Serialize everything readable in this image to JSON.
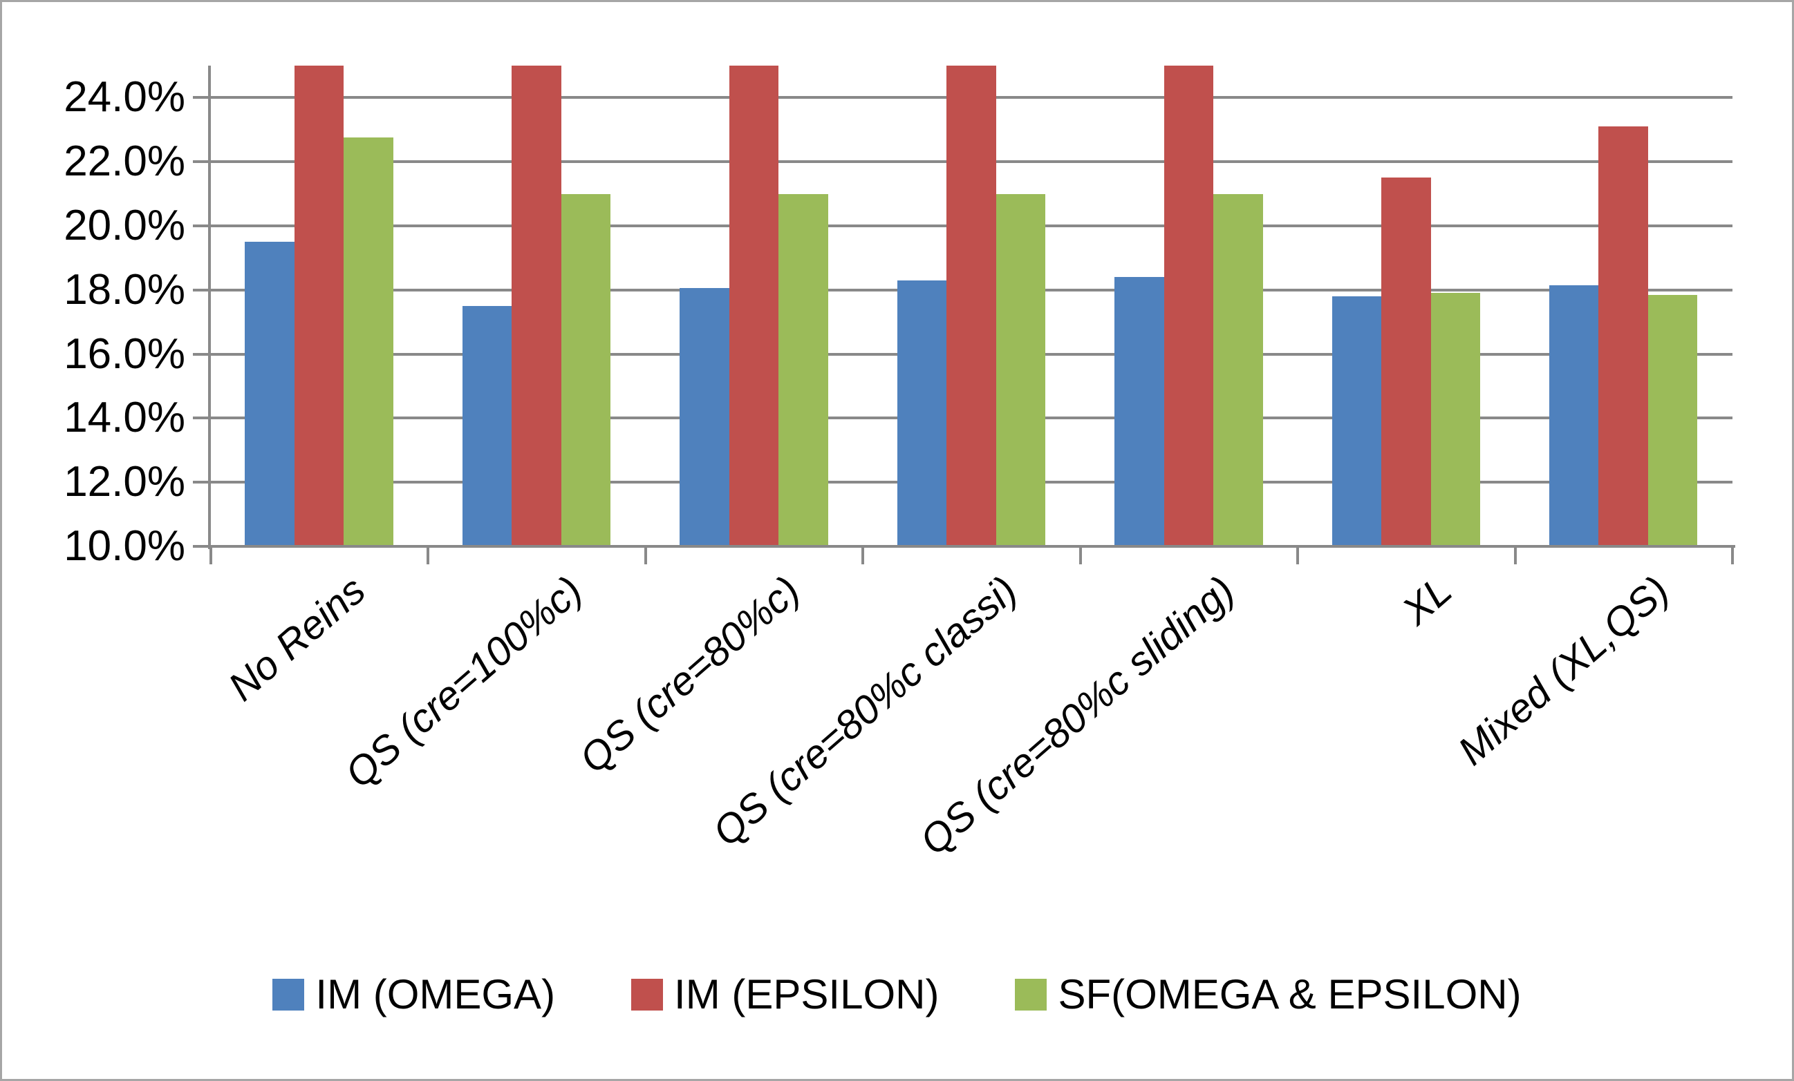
{
  "chart_data": {
    "type": "bar",
    "title": "",
    "xlabel": "",
    "ylabel": "",
    "categories": [
      "No Reins",
      "QS (cre=100%c)",
      "QS (cre=80%c)",
      "QS (cre=80%c classi)",
      "QS (cre=80%c sliding)",
      "XL",
      "Mixed (XL,QS)"
    ],
    "series": [
      {
        "name": "IM (OMEGA)",
        "color": "#4F81BD",
        "values": [
          19.5,
          17.5,
          18.05,
          18.3,
          18.4,
          17.8,
          18.15
        ]
      },
      {
        "name": "IM (EPSILON)",
        "color": "#C0504D",
        "values": [
          25.0,
          25.0,
          25.0,
          25.0,
          25.0,
          21.5,
          23.1
        ]
      },
      {
        "name": "SF(OMEGA & EPSILON)",
        "color": "#9BBB59",
        "values": [
          22.75,
          21.0,
          21.0,
          21.0,
          21.0,
          17.9,
          17.85
        ]
      }
    ],
    "ylim": [
      10,
      25
    ],
    "yticks": [
      {
        "value": 10,
        "label": "10.0%"
      },
      {
        "value": 12,
        "label": "12.0%"
      },
      {
        "value": 14,
        "label": "14.0%"
      },
      {
        "value": 16,
        "label": "16.0%"
      },
      {
        "value": 18,
        "label": "18.0%"
      },
      {
        "value": 20,
        "label": "20.0%"
      },
      {
        "value": 22,
        "label": "22.0%"
      },
      {
        "value": 24,
        "label": "24.0%"
      }
    ],
    "grid": true,
    "legend_position": "bottom"
  },
  "colors": {
    "gridline": "#898989",
    "axis": "#898989",
    "frame_border": "#A6A6A6",
    "background": "#FFFFFF",
    "text": "#000000"
  }
}
